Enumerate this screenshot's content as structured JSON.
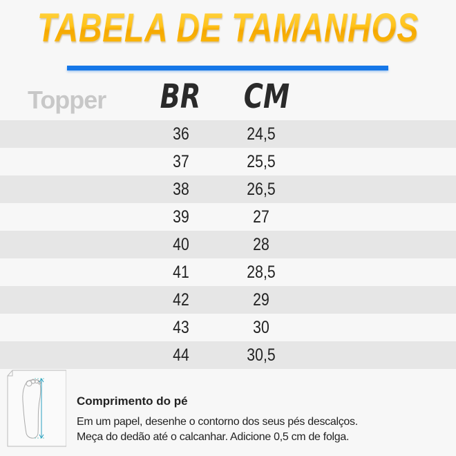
{
  "title": "TABELA DE TAMANHOS",
  "brand": "Topper",
  "columns": {
    "br": "BR",
    "cm": "CM"
  },
  "rows": [
    {
      "br": "36",
      "cm": "24,5"
    },
    {
      "br": "37",
      "cm": "25,5"
    },
    {
      "br": "38",
      "cm": "26,5"
    },
    {
      "br": "39",
      "cm": "27"
    },
    {
      "br": "40",
      "cm": "28"
    },
    {
      "br": "41",
      "cm": "28,5"
    },
    {
      "br": "42",
      "cm": "29"
    },
    {
      "br": "43",
      "cm": "30"
    },
    {
      "br": "44",
      "cm": "30,5"
    }
  ],
  "footer": {
    "title": "Comprimento do pé",
    "line1": "Em um papel, desenhe o contorno dos seus pés descalços.",
    "line2": "Meça do dedão até o calcanhar. Adicione 0,5 cm de folga.",
    "icon": "foot-measure-icon"
  },
  "colors": {
    "title": "#ffb800",
    "accent_bar": "#1677e8",
    "row_shade": "#e6e6e6"
  }
}
